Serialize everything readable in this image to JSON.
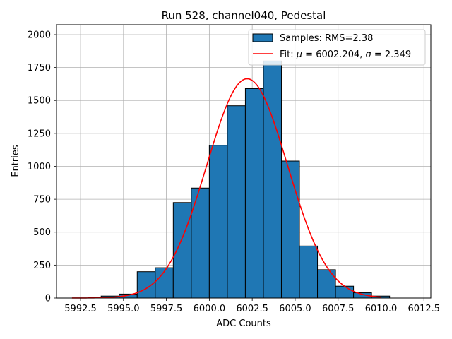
{
  "chart_data": {
    "type": "bar",
    "title": "Run 528, channel040, Pedestal",
    "xlabel": "ADC Counts",
    "ylabel": "Entries",
    "xlim": [
      5991.1,
      6012.9
    ],
    "ylim": [
      0,
      2075
    ],
    "xticks": [
      5992.5,
      5995.0,
      5997.5,
      6000.0,
      6002.5,
      6005.0,
      6007.5,
      6010.0,
      6012.5
    ],
    "xtick_labels": [
      "5992.5",
      "5995.0",
      "5997.5",
      "6000.0",
      "6002.5",
      "6005.0",
      "6007.5",
      "6010.0",
      "6012.5"
    ],
    "yticks": [
      0,
      250,
      500,
      750,
      1000,
      1250,
      1500,
      1750,
      2000
    ],
    "ytick_labels": [
      "0",
      "250",
      "500",
      "750",
      "1000",
      "1250",
      "1500",
      "1750",
      "2000"
    ],
    "grid": true,
    "legend_position": "top-right",
    "bin_width": 1.05,
    "bins": [
      {
        "x_start": 5993.7,
        "value": 15
      },
      {
        "x_start": 5994.75,
        "value": 30
      },
      {
        "x_start": 5995.8,
        "value": 200
      },
      {
        "x_start": 5996.85,
        "value": 230
      },
      {
        "x_start": 5997.9,
        "value": 725
      },
      {
        "x_start": 5998.95,
        "value": 835
      },
      {
        "x_start": 6000.0,
        "value": 1160
      },
      {
        "x_start": 6001.05,
        "value": 1460
      },
      {
        "x_start": 6002.1,
        "value": 1590
      },
      {
        "x_start": 6003.15,
        "value": 1800
      },
      {
        "x_start": 6004.2,
        "value": 1040
      },
      {
        "x_start": 6005.25,
        "value": 395
      },
      {
        "x_start": 6006.3,
        "value": 215
      },
      {
        "x_start": 6007.35,
        "value": 90
      },
      {
        "x_start": 6008.4,
        "value": 40
      },
      {
        "x_start": 6009.45,
        "value": 15
      }
    ],
    "fit": {
      "mu": 6002.204,
      "sigma": 2.349,
      "peak": 1665,
      "x_range": [
        5992.0,
        6010.0
      ]
    },
    "legend": [
      {
        "label": "Samples: RMS=2.38",
        "kind": "patch"
      },
      {
        "label_prefix": "Fit: ",
        "mu_symbol": "μ",
        "mu_text": " = 6002.204, ",
        "sigma_symbol": "σ",
        "sigma_text": " = 2.349",
        "kind": "line"
      }
    ],
    "colors": {
      "bar_fill": "#1f77b4",
      "bar_edge": "#000000",
      "fit_line": "#ff0000",
      "grid": "#b0b0b0"
    }
  }
}
